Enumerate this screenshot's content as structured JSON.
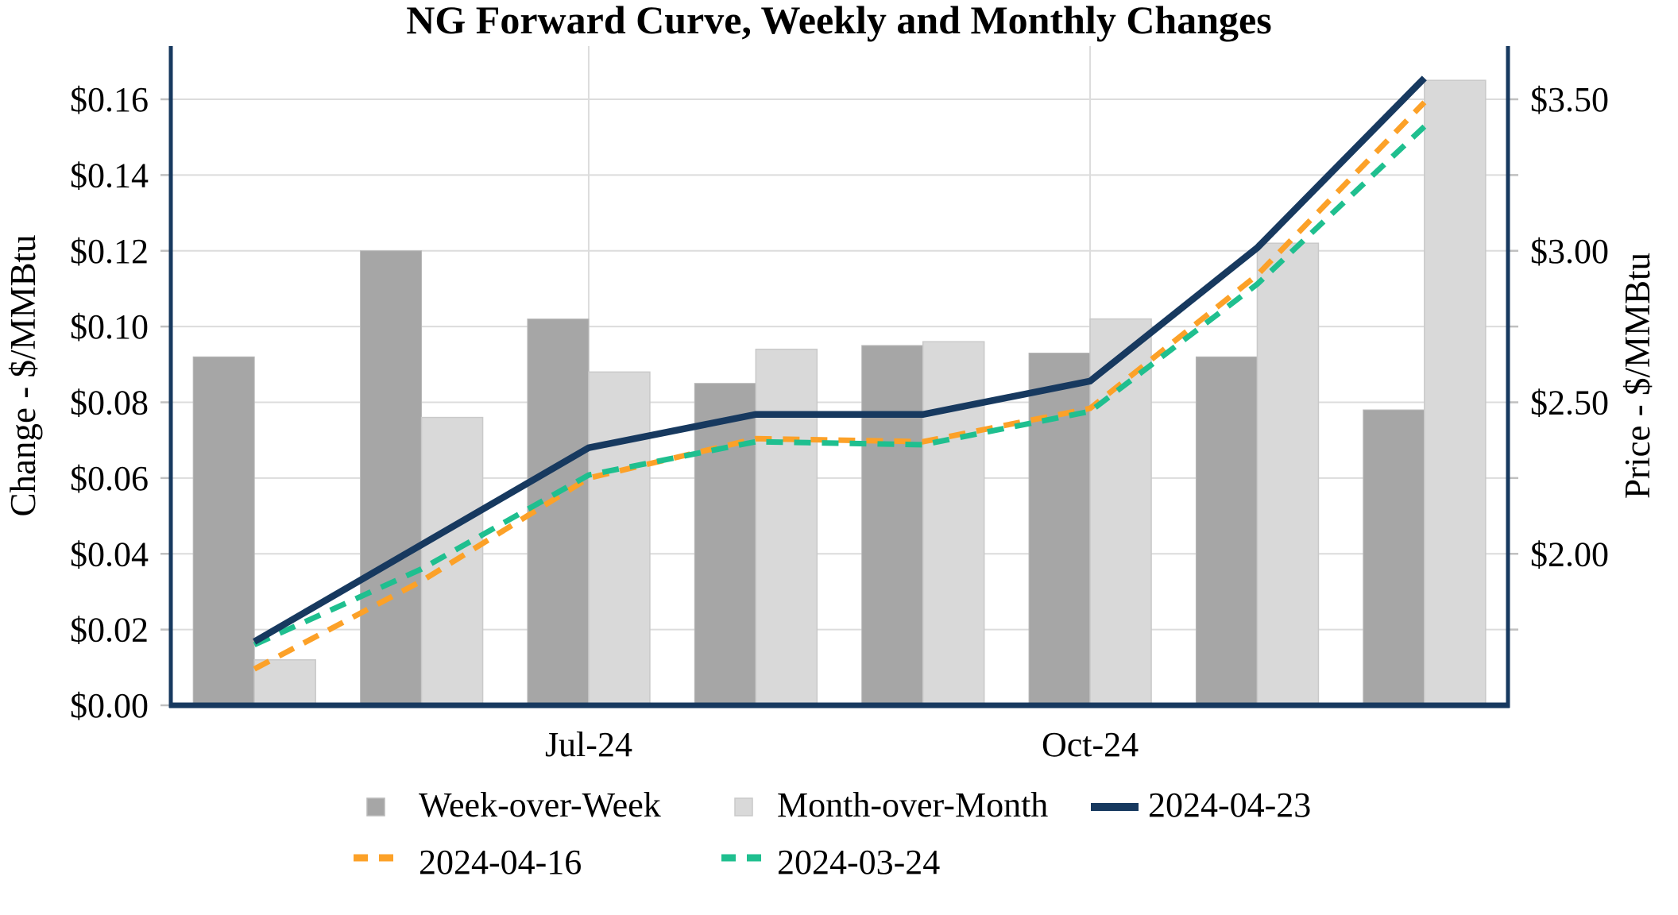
{
  "chart_data": {
    "type": "combo-bar-line",
    "title": "NG Forward Curve, Weekly and Monthly Changes",
    "left_axis": {
      "label": "Change - $/MMBtu",
      "tick_labels": [
        "$0.00",
        "$0.02",
        "$0.04",
        "$0.06",
        "$0.08",
        "$0.10",
        "$0.12",
        "$0.14",
        "$0.16"
      ],
      "tick_values": [
        0.0,
        0.02,
        0.04,
        0.06,
        0.08,
        0.1,
        0.12,
        0.14,
        0.16
      ],
      "min": 0.0,
      "max": 0.16,
      "gridlines": true
    },
    "right_axis": {
      "label": "Price - $/MMBtu",
      "tick_labels": [
        "$2.00",
        "$2.50",
        "$3.00",
        "$3.50"
      ],
      "tick_values": [
        2.0,
        2.5,
        3.0,
        3.5
      ],
      "minor_tick_values": [
        1.75,
        2.0,
        2.25,
        2.5,
        2.75,
        3.0,
        3.25,
        3.5
      ],
      "min": 1.5,
      "max": 3.68
    },
    "x_axis": {
      "num_groups": 8,
      "tick_labels": [
        "Jul-24",
        "Oct-24"
      ],
      "tick_group_indices": [
        2,
        5
      ],
      "vertical_gridlines": true
    },
    "bar_series": [
      {
        "name": "Week-over-Week",
        "color": "#A6A6A6",
        "edge_color": "#B8B8B8",
        "axis": "left",
        "values": [
          0.092,
          0.12,
          0.102,
          0.085,
          0.095,
          0.093,
          0.092,
          0.078
        ]
      },
      {
        "name": "Month-over-Month",
        "color": "#D9D9D9",
        "edge_color": "#C9C9C9",
        "axis": "left",
        "values": [
          0.012,
          0.076,
          0.088,
          0.094,
          0.096,
          0.102,
          0.122,
          0.165
        ]
      }
    ],
    "line_series": [
      {
        "name": "2024-04-23",
        "color": "#17395F",
        "style": "solid",
        "axis": "right",
        "values": [
          1.71,
          2.03,
          2.35,
          2.46,
          2.46,
          2.57,
          3.01,
          3.57
        ]
      },
      {
        "name": "2024-04-16",
        "color": "#FCA128",
        "style": "dashed",
        "axis": "right",
        "values": [
          1.62,
          1.91,
          2.25,
          2.38,
          2.37,
          2.48,
          2.92,
          3.49
        ]
      },
      {
        "name": "2024-03-24",
        "color": "#1FBF8F",
        "style": "dashed",
        "axis": "right",
        "values": [
          1.7,
          1.95,
          2.26,
          2.37,
          2.36,
          2.47,
          2.89,
          3.41
        ]
      }
    ],
    "legend": {
      "row1": [
        "Week-over-Week",
        "Month-over-Month",
        "2024-04-23"
      ],
      "row2": [
        "2024-04-16",
        "2024-03-24"
      ]
    },
    "frame_color": "#17395F",
    "gridline_color": "#DCDCDC",
    "tick_color": "#C0C0C0",
    "background_color": "#FFFFFF"
  }
}
